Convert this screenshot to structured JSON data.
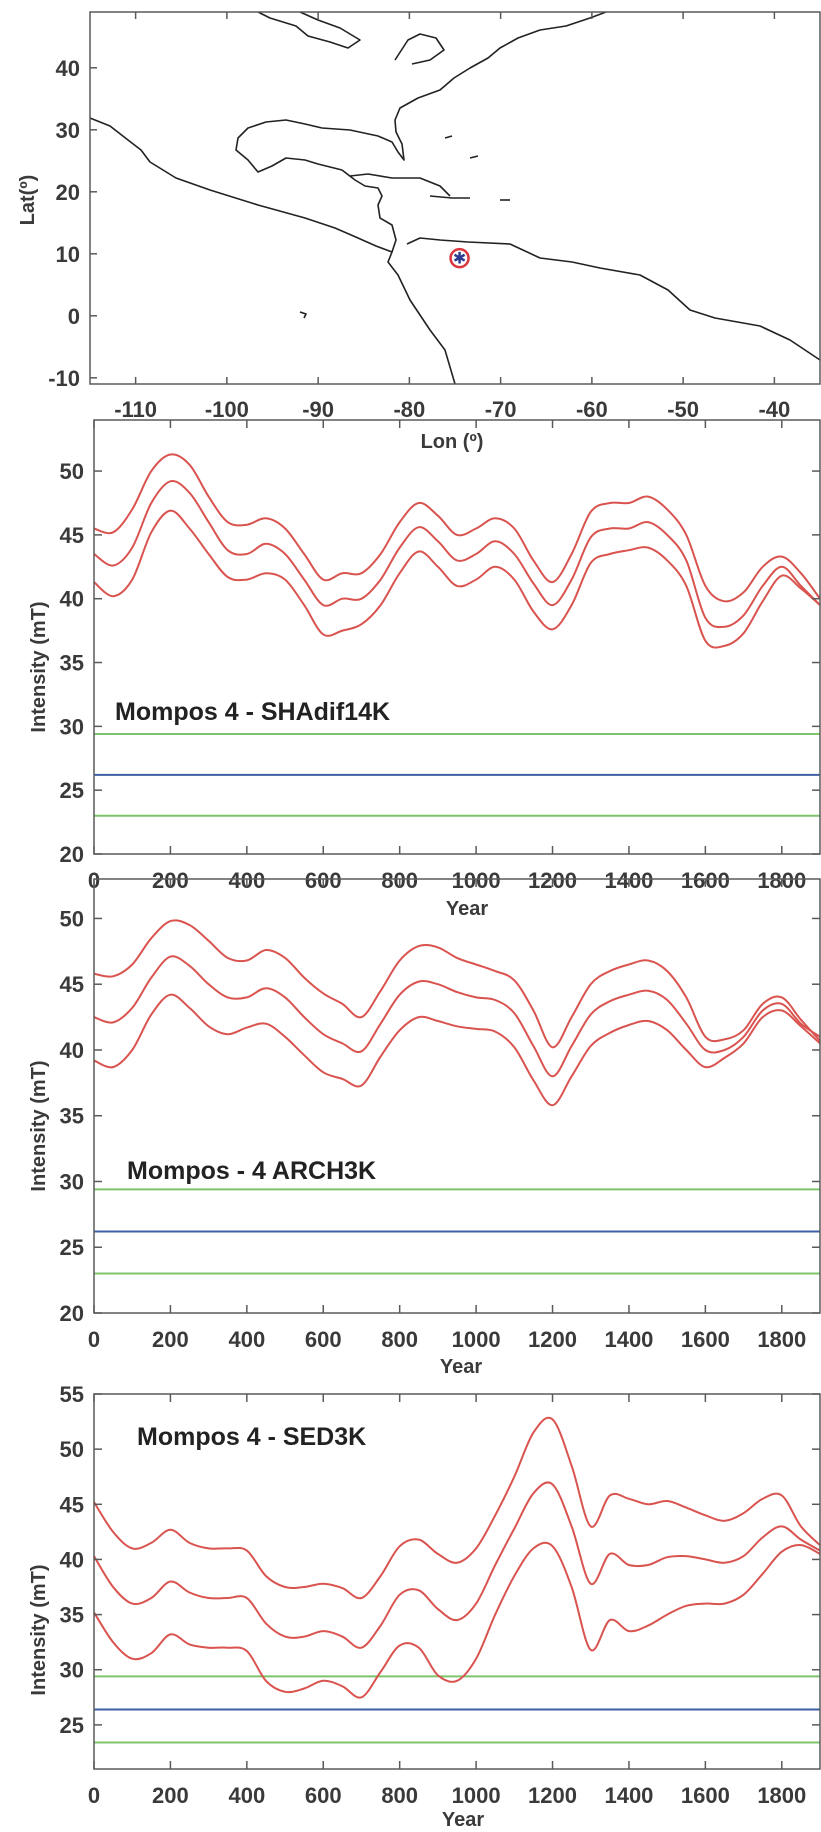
{
  "map": {
    "xlabel": "Lon (º)",
    "ylabel": "Lat(º)",
    "xticks": [
      -110,
      -100,
      -90,
      -80,
      -70,
      -60,
      -50,
      -40
    ],
    "yticks": [
      -10,
      0,
      10,
      20,
      30,
      40
    ],
    "xlim": [
      -115,
      -35
    ],
    "ylim": [
      -11,
      49
    ],
    "site_marker": {
      "lon": -74.5,
      "lat": 9.3,
      "icon": "star-circle-icon",
      "color": "#2a3d8f",
      "ring_color": "#d9363e"
    }
  },
  "chart_data": [
    {
      "type": "line",
      "title": "Mompos 4 - SHAdif14K",
      "xlabel": "Year",
      "ylabel": "Intensity (mT)",
      "xlim": [
        0,
        1900
      ],
      "ylim": [
        20,
        54
      ],
      "xticks": [
        0,
        200,
        400,
        600,
        800,
        1000,
        1200,
        1400,
        1600,
        1800
      ],
      "yticks": [
        20,
        25,
        30,
        35,
        40,
        45,
        50
      ],
      "grid": false,
      "curve_color": "#d9534f",
      "x": [
        0,
        50,
        100,
        150,
        200,
        250,
        300,
        350,
        400,
        450,
        500,
        550,
        600,
        650,
        700,
        750,
        800,
        850,
        900,
        950,
        1000,
        1050,
        1100,
        1150,
        1200,
        1250,
        1300,
        1350,
        1400,
        1450,
        1500,
        1550,
        1600,
        1650,
        1700,
        1750,
        1800,
        1850,
        1900
      ],
      "series": [
        {
          "values": [
            45.5,
            45.2,
            47,
            50,
            51.3,
            50.5,
            48,
            46,
            45.8,
            46.3,
            45.5,
            43.5,
            41.5,
            42,
            42,
            43.5,
            46,
            47.5,
            46.5,
            45,
            45.5,
            46.3,
            45.5,
            43,
            41.3,
            43.5,
            46.8,
            47.5,
            47.5,
            48,
            47,
            45,
            41,
            39.8,
            40.5,
            42.5,
            43.3,
            42,
            40
          ]
        },
        {
          "values": [
            43.5,
            42.6,
            44,
            47.5,
            49.2,
            48.3,
            46,
            43.8,
            43.5,
            44.3,
            43.5,
            41.5,
            39.5,
            40,
            40,
            41.5,
            44,
            45.6,
            44.5,
            43,
            43.5,
            44.5,
            43.5,
            41.2,
            39.5,
            41.5,
            44.8,
            45.5,
            45.5,
            46,
            45,
            43,
            38.5,
            37.8,
            38.7,
            41,
            42.5,
            41,
            39.5
          ]
        },
        {
          "values": [
            41.3,
            40.2,
            41.5,
            45.2,
            46.9,
            45.5,
            43.5,
            41.7,
            41.5,
            42,
            41.5,
            39.5,
            37.2,
            37.5,
            38,
            39.5,
            42,
            43.7,
            42.5,
            41,
            41.5,
            42.5,
            41.5,
            39,
            37.6,
            39.5,
            42.8,
            43.5,
            43.8,
            44,
            43,
            41,
            36.7,
            36.3,
            37.3,
            39.8,
            41.8,
            40.8,
            39.5
          ]
        }
      ],
      "reference_lines": [
        {
          "y": 29.4,
          "color": "#7cc46a"
        },
        {
          "y": 26.2,
          "color": "#3f5fa8"
        },
        {
          "y": 23.0,
          "color": "#7cc46a"
        }
      ]
    },
    {
      "type": "line",
      "title": "Mompos - 4 ARCH3K",
      "xlabel": "Year",
      "ylabel": "Intensity (mT)",
      "xlim": [
        0,
        1900
      ],
      "ylim": [
        20,
        53
      ],
      "xticks": [
        0,
        200,
        400,
        600,
        800,
        1000,
        1200,
        1400,
        1600,
        1800
      ],
      "yticks": [
        20,
        25,
        30,
        35,
        40,
        45,
        50
      ],
      "grid": false,
      "curve_color": "#d9534f",
      "x": [
        0,
        50,
        100,
        150,
        200,
        250,
        300,
        350,
        400,
        450,
        500,
        550,
        600,
        650,
        700,
        750,
        800,
        850,
        900,
        950,
        1000,
        1050,
        1100,
        1150,
        1200,
        1250,
        1300,
        1350,
        1400,
        1450,
        1500,
        1550,
        1600,
        1650,
        1700,
        1750,
        1800,
        1850,
        1900
      ],
      "series": [
        {
          "values": [
            45.8,
            45.6,
            46.5,
            48.5,
            49.8,
            49.5,
            48.3,
            47,
            46.8,
            47.6,
            47,
            45.5,
            44.3,
            43.5,
            42.5,
            44.5,
            46.8,
            47.9,
            47.8,
            47,
            46.5,
            46,
            45.3,
            43,
            40.2,
            42.5,
            45,
            46,
            46.5,
            46.8,
            46,
            44,
            41,
            40.8,
            41.5,
            43.5,
            44,
            42.3,
            40.7
          ]
        },
        {
          "values": [
            42.5,
            42.1,
            43.2,
            45.5,
            47.1,
            46.4,
            45,
            44,
            44,
            44.7,
            44,
            42.5,
            41.2,
            40.5,
            39.9,
            42,
            44.2,
            45.2,
            45,
            44.4,
            44,
            43.8,
            42.8,
            40.3,
            38,
            40.3,
            42.7,
            43.7,
            44.2,
            44.5,
            43.8,
            42,
            40,
            40,
            41,
            43,
            43.5,
            42,
            41
          ]
        },
        {
          "values": [
            39.2,
            38.7,
            40,
            42.7,
            44.2,
            43.2,
            41.8,
            41.2,
            41.7,
            42,
            41,
            39.6,
            38.3,
            37.8,
            37.3,
            39.5,
            41.5,
            42.5,
            42.2,
            41.8,
            41.6,
            41.4,
            40.2,
            37.7,
            35.8,
            38,
            40.3,
            41.3,
            41.9,
            42.2,
            41.5,
            40,
            38.7,
            39.4,
            40.5,
            42.5,
            43,
            41.8,
            40.5
          ]
        }
      ],
      "reference_lines": [
        {
          "y": 29.4,
          "color": "#7cc46a"
        },
        {
          "y": 26.2,
          "color": "#3f5fa8"
        },
        {
          "y": 23.0,
          "color": "#7cc46a"
        }
      ]
    },
    {
      "type": "line",
      "title": "Mompos 4 - SED3K",
      "xlabel": "Year",
      "ylabel": "Intensity (mT)",
      "xlim": [
        0,
        1900
      ],
      "ylim": [
        21,
        55
      ],
      "xticks": [
        0,
        200,
        400,
        600,
        800,
        1000,
        1200,
        1400,
        1600,
        1800
      ],
      "yticks": [
        25,
        30,
        35,
        40,
        45,
        50,
        55
      ],
      "grid": false,
      "curve_color": "#d9534f",
      "x": [
        0,
        50,
        100,
        150,
        200,
        250,
        300,
        350,
        400,
        450,
        500,
        550,
        600,
        650,
        700,
        750,
        800,
        850,
        900,
        950,
        1000,
        1050,
        1100,
        1150,
        1200,
        1250,
        1300,
        1350,
        1400,
        1450,
        1500,
        1550,
        1600,
        1650,
        1700,
        1750,
        1800,
        1850,
        1900
      ],
      "series": [
        {
          "values": [
            45.2,
            42.5,
            41,
            41.5,
            42.7,
            41.5,
            41,
            41,
            40.8,
            38.5,
            37.5,
            37.5,
            37.8,
            37.4,
            36.5,
            38.5,
            41.2,
            41.8,
            40.5,
            39.7,
            41,
            44,
            47.5,
            51.5,
            52.7,
            48.5,
            43,
            45.8,
            45.5,
            45,
            45.3,
            44.7,
            44,
            43.5,
            44.2,
            45.5,
            45.8,
            43,
            41.3
          ]
        },
        {
          "values": [
            40.3,
            37.5,
            36,
            36.5,
            38,
            37,
            36.5,
            36.5,
            36.5,
            34.2,
            33,
            33,
            33.5,
            33,
            32,
            34,
            36.8,
            37.2,
            35.5,
            34.5,
            36,
            39.5,
            42.8,
            46,
            46.8,
            43,
            37.8,
            40.5,
            39.5,
            39.5,
            40.2,
            40.3,
            40,
            39.7,
            40.3,
            42,
            43,
            41.8,
            40.8
          ]
        },
        {
          "values": [
            35.2,
            32.5,
            31,
            31.5,
            33.2,
            32.3,
            32,
            32,
            31.7,
            29,
            28,
            28.3,
            29,
            28.5,
            27.5,
            29.8,
            32.2,
            32,
            29.5,
            29,
            31,
            35,
            38.5,
            41,
            41.2,
            37.5,
            31.8,
            34.5,
            33.5,
            34,
            35,
            35.8,
            36,
            36,
            36.8,
            38.7,
            40.7,
            41.3,
            40.5
          ]
        }
      ],
      "reference_lines": [
        {
          "y": 29.4,
          "color": "#7cc46a"
        },
        {
          "y": 26.4,
          "color": "#3f5fa8"
        },
        {
          "y": 23.4,
          "color": "#7cc46a"
        }
      ]
    }
  ]
}
